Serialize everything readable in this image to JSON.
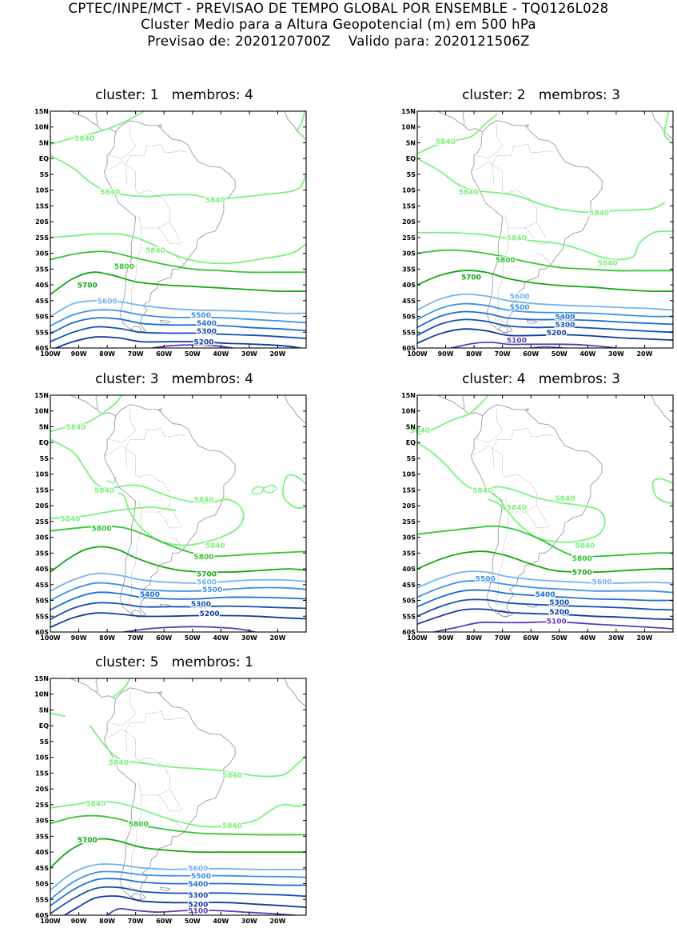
{
  "header": {
    "line1": "CPTEC/INPE/MCT - PREVISAO DE TEMPO GLOBAL POR ENSEMBLE - TQ0126L028",
    "line2": "Cluster Medio para a Altura Geopotencial (m) em 500 hPa",
    "line3": "Previsao de: 2020120700Z    Valido para: 2020121506Z"
  },
  "axes": {
    "lat_labels": [
      "15N",
      "10N",
      "5N",
      "EQ",
      "5S",
      "10S",
      "15S",
      "20S",
      "25S",
      "30S",
      "35S",
      "40S",
      "45S",
      "50S",
      "55S",
      "60S"
    ],
    "lon_labels": [
      "100W",
      "90W",
      "80W",
      "70W",
      "60W",
      "50W",
      "40W",
      "30W",
      "20W"
    ]
  },
  "colors": {
    "c5840": "#7df07d",
    "c5800": "#36c336",
    "c5700": "#14a514",
    "c5600": "#73b4f0",
    "c5500": "#3c91e6",
    "c5400": "#1e6ed2",
    "c5300": "#1450b4",
    "c5200": "#0f3ca0",
    "c5100": "#5a3cb4",
    "coast": "#9a9a9a"
  },
  "clusters": [
    {
      "title": "cluster: 1   membros: 4",
      "labels": [
        {
          "text": "5840",
          "lon": -88,
          "lat": 6.5,
          "c": "c5840"
        },
        {
          "text": "5840",
          "lon": -79,
          "lat": -10.5,
          "c": "c5840"
        },
        {
          "text": "5840",
          "lon": -42,
          "lat": -13,
          "c": "c5840"
        },
        {
          "text": "5840",
          "lon": -63,
          "lat": -29,
          "c": "c5840"
        },
        {
          "text": "5800",
          "lon": -74,
          "lat": -34,
          "c": "c5800"
        },
        {
          "text": "5700",
          "lon": -87,
          "lat": -40,
          "c": "c5700"
        },
        {
          "text": "5600",
          "lon": -80,
          "lat": -45,
          "c": "c5600"
        },
        {
          "text": "5500",
          "lon": -47,
          "lat": -49.5,
          "c": "c5500"
        },
        {
          "text": "5400",
          "lon": -45,
          "lat": -52,
          "c": "c5400"
        },
        {
          "text": "5300",
          "lon": -45,
          "lat": -54.5,
          "c": "c5300"
        },
        {
          "text": "5200",
          "lon": -46,
          "lat": -58,
          "c": "c5200"
        }
      ]
    },
    {
      "title": "cluster: 2   membros: 3",
      "labels": [
        {
          "text": "5840",
          "lon": -90,
          "lat": 5.5,
          "c": "c5840"
        },
        {
          "text": "5840",
          "lon": -82,
          "lat": -10.5,
          "c": "c5840"
        },
        {
          "text": "5840",
          "lon": -36,
          "lat": -17,
          "c": "c5840"
        },
        {
          "text": "5840",
          "lon": -65,
          "lat": -25,
          "c": "c5840"
        },
        {
          "text": "5840",
          "lon": -33,
          "lat": -33,
          "c": "c5840"
        },
        {
          "text": "5800",
          "lon": -69,
          "lat": -32,
          "c": "c5800"
        },
        {
          "text": "5700",
          "lon": -81,
          "lat": -37.5,
          "c": "c5700"
        },
        {
          "text": "5600",
          "lon": -64,
          "lat": -43.5,
          "c": "c5600"
        },
        {
          "text": "5500",
          "lon": -64,
          "lat": -47,
          "c": "c5500"
        },
        {
          "text": "5400",
          "lon": -48,
          "lat": -50,
          "c": "c5400"
        },
        {
          "text": "5300",
          "lon": -48,
          "lat": -52.5,
          "c": "c5300"
        },
        {
          "text": "5200",
          "lon": -51,
          "lat": -55,
          "c": "c5200"
        },
        {
          "text": "5100",
          "lon": -65,
          "lat": -57.5,
          "c": "c5100"
        }
      ]
    },
    {
      "title": "cluster: 3   membros: 4",
      "labels": [
        {
          "text": "5840",
          "lon": -91,
          "lat": 5,
          "c": "c5840"
        },
        {
          "text": "5840",
          "lon": -81,
          "lat": -15,
          "c": "c5840"
        },
        {
          "text": "5840",
          "lon": -46,
          "lat": -18,
          "c": "c5840"
        },
        {
          "text": "5840",
          "lon": -93,
          "lat": -24,
          "c": "c5840"
        },
        {
          "text": "5840",
          "lon": -42,
          "lat": -32.5,
          "c": "c5840"
        },
        {
          "text": "5800",
          "lon": -82,
          "lat": -27,
          "c": "c5800"
        },
        {
          "text": "5800",
          "lon": -46,
          "lat": -36,
          "c": "c5800"
        },
        {
          "text": "5700",
          "lon": -45,
          "lat": -41.5,
          "c": "c5700"
        },
        {
          "text": "5600",
          "lon": -45,
          "lat": -44,
          "c": "c5600"
        },
        {
          "text": "5500",
          "lon": -43,
          "lat": -46.5,
          "c": "c5500"
        },
        {
          "text": "5400",
          "lon": -65,
          "lat": -48,
          "c": "c5400"
        },
        {
          "text": "5300",
          "lon": -47,
          "lat": -51,
          "c": "c5300"
        },
        {
          "text": "5200",
          "lon": -44,
          "lat": -54,
          "c": "c5200"
        }
      ]
    },
    {
      "title": "cluster: 4   membros: 3",
      "labels": [
        {
          "text": "5840",
          "lon": -99,
          "lat": 4,
          "c": "c5840"
        },
        {
          "text": "5840",
          "lon": -77,
          "lat": -15,
          "c": "c5840"
        },
        {
          "text": "5840",
          "lon": -65,
          "lat": -20.5,
          "c": "c5840"
        },
        {
          "text": "5840",
          "lon": -48,
          "lat": -17.5,
          "c": "c5840"
        },
        {
          "text": "5840",
          "lon": -41,
          "lat": -32.5,
          "c": "c5840"
        },
        {
          "text": "5800",
          "lon": -42,
          "lat": -36.5,
          "c": "c5800"
        },
        {
          "text": "5700",
          "lon": -42,
          "lat": -41,
          "c": "c5700"
        },
        {
          "text": "5600",
          "lon": -35,
          "lat": -44,
          "c": "c5600"
        },
        {
          "text": "5500",
          "lon": -76,
          "lat": -43,
          "c": "c5500"
        },
        {
          "text": "5400",
          "lon": -55,
          "lat": -48,
          "c": "c5400"
        },
        {
          "text": "5300",
          "lon": -50,
          "lat": -50.5,
          "c": "c5300"
        },
        {
          "text": "5200",
          "lon": -50,
          "lat": -53.5,
          "c": "c5200"
        },
        {
          "text": "5100",
          "lon": -51,
          "lat": -56.5,
          "c": "c5100"
        }
      ]
    },
    {
      "title": "cluster: 5   membros: 1",
      "labels": [
        {
          "text": "5840",
          "lon": -76,
          "lat": -11.5,
          "c": "c5840"
        },
        {
          "text": "5840",
          "lon": -36,
          "lat": -15.5,
          "c": "c5840"
        },
        {
          "text": "5840",
          "lon": -84,
          "lat": -24.5,
          "c": "c5840"
        },
        {
          "text": "5840",
          "lon": -36,
          "lat": -31.5,
          "c": "c5840"
        },
        {
          "text": "5800",
          "lon": -69,
          "lat": -31,
          "c": "c5800"
        },
        {
          "text": "5700",
          "lon": -87,
          "lat": -36,
          "c": "c5700"
        },
        {
          "text": "5600",
          "lon": -48,
          "lat": -45,
          "c": "c5600"
        },
        {
          "text": "5500",
          "lon": -47,
          "lat": -47.5,
          "c": "c5500"
        },
        {
          "text": "5400",
          "lon": -48,
          "lat": -50,
          "c": "c5400"
        },
        {
          "text": "5300",
          "lon": -48,
          "lat": -53.5,
          "c": "c5300"
        },
        {
          "text": "5200",
          "lon": -48,
          "lat": -56.5,
          "c": "c5200"
        },
        {
          "text": "5100",
          "lon": -48,
          "lat": -58.5,
          "c": "c5100"
        }
      ]
    }
  ]
}
